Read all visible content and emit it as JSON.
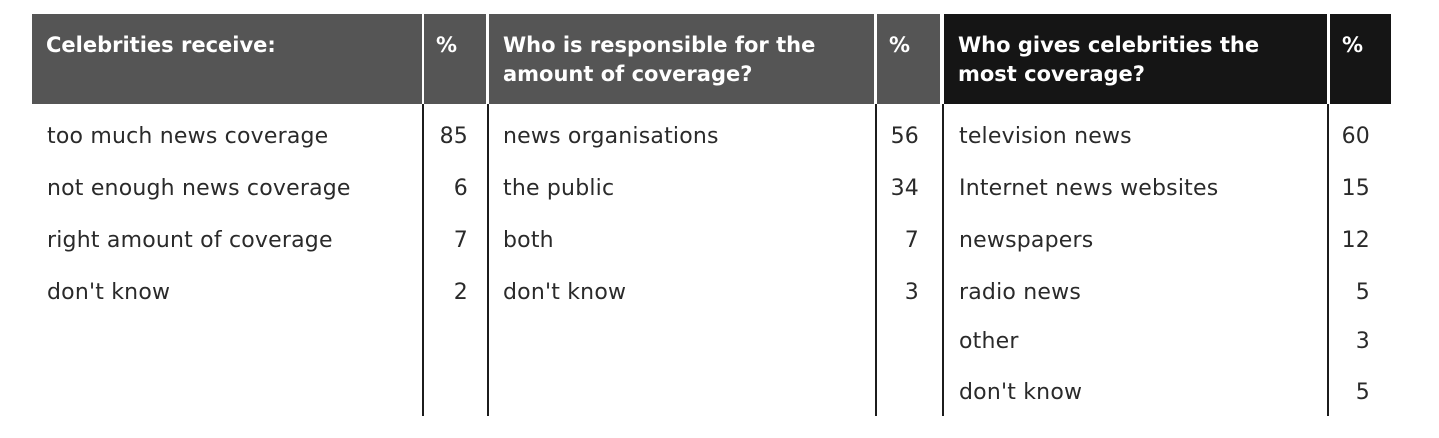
{
  "tables": [
    {
      "header": "Celebrities receive:",
      "pct_header": "%",
      "rows": [
        {
          "label": "too much news coverage",
          "value": "85"
        },
        {
          "label": "not enough news coverage",
          "value": "6"
        },
        {
          "label": "right amount of coverage",
          "value": "7"
        },
        {
          "label": "don't know",
          "value": "2"
        }
      ]
    },
    {
      "header": "Who is responsible for the amount of coverage?",
      "pct_header": "%",
      "rows": [
        {
          "label": "news organisations",
          "value": "56"
        },
        {
          "label": "the public",
          "value": "34"
        },
        {
          "label": "both",
          "value": "7"
        },
        {
          "label": "don't know",
          "value": "3"
        }
      ]
    },
    {
      "header": "Who gives celebrities the most coverage?",
      "pct_header": "%",
      "rows": [
        {
          "label": "television news",
          "value": "60"
        },
        {
          "label": "Internet news websites",
          "value": "15"
        },
        {
          "label": "newspapers",
          "value": "12"
        },
        {
          "label": "radio news",
          "value": "5"
        },
        {
          "label": "other",
          "value": "3"
        },
        {
          "label": "don't know",
          "value": "5"
        }
      ]
    }
  ],
  "colors": {
    "header_gray": "#555555",
    "header_black": "#151515"
  }
}
